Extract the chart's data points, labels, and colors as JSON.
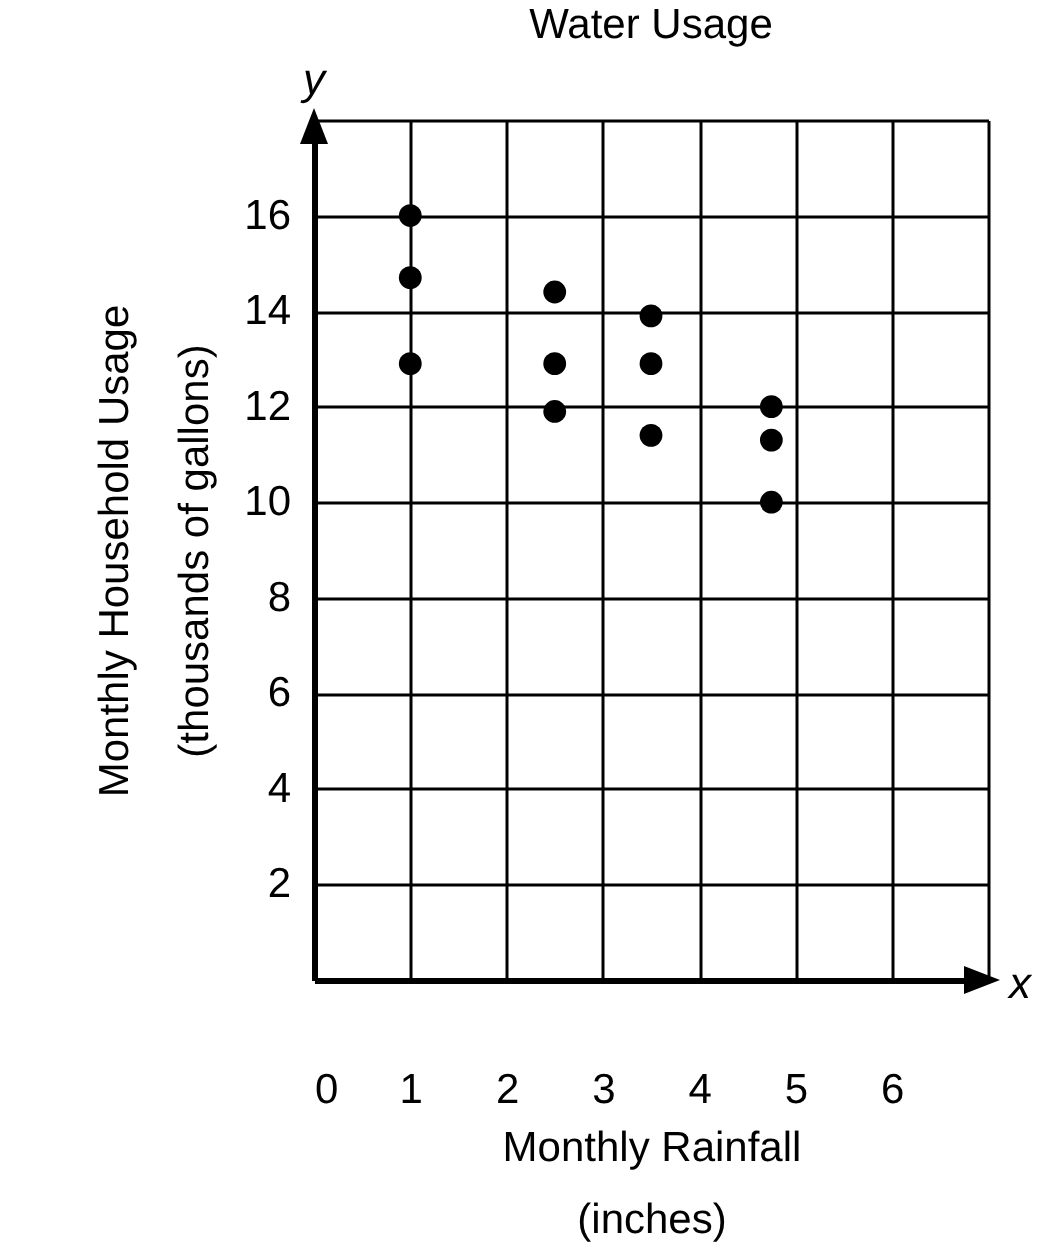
{
  "chart_data": {
    "type": "scatter",
    "title": "Water Usage",
    "xlabel": "Monthly Rainfall\n(inches)",
    "ylabel": "Monthly Household Usage\n(thousands of gallons)",
    "annotations": [
      "y",
      "x"
    ],
    "x": [
      1,
      1,
      1,
      2.5,
      2.5,
      2.5,
      3.5,
      3.5,
      3.5,
      4.75,
      4.75,
      4.75
    ],
    "series": [
      {
        "color": "#000000",
        "values": [
          16,
          14.7,
          12.9,
          14.4,
          12.9,
          11.9,
          13.9,
          12.9,
          11.4,
          12.0,
          11.3,
          10.0
        ]
      }
    ],
    "xlim": [
      0,
      7
    ],
    "xticks": [
      0,
      1,
      2,
      3,
      4,
      5,
      6,
      {
        "value": 7,
        "label": null
      }
    ],
    "ylim": [
      0,
      18
    ],
    "yticks": [
      2,
      4,
      6,
      8,
      10,
      12,
      14,
      16,
      {
        "value": 18,
        "label": null
      }
    ],
    "grid": true,
    "marker": "circle"
  }
}
